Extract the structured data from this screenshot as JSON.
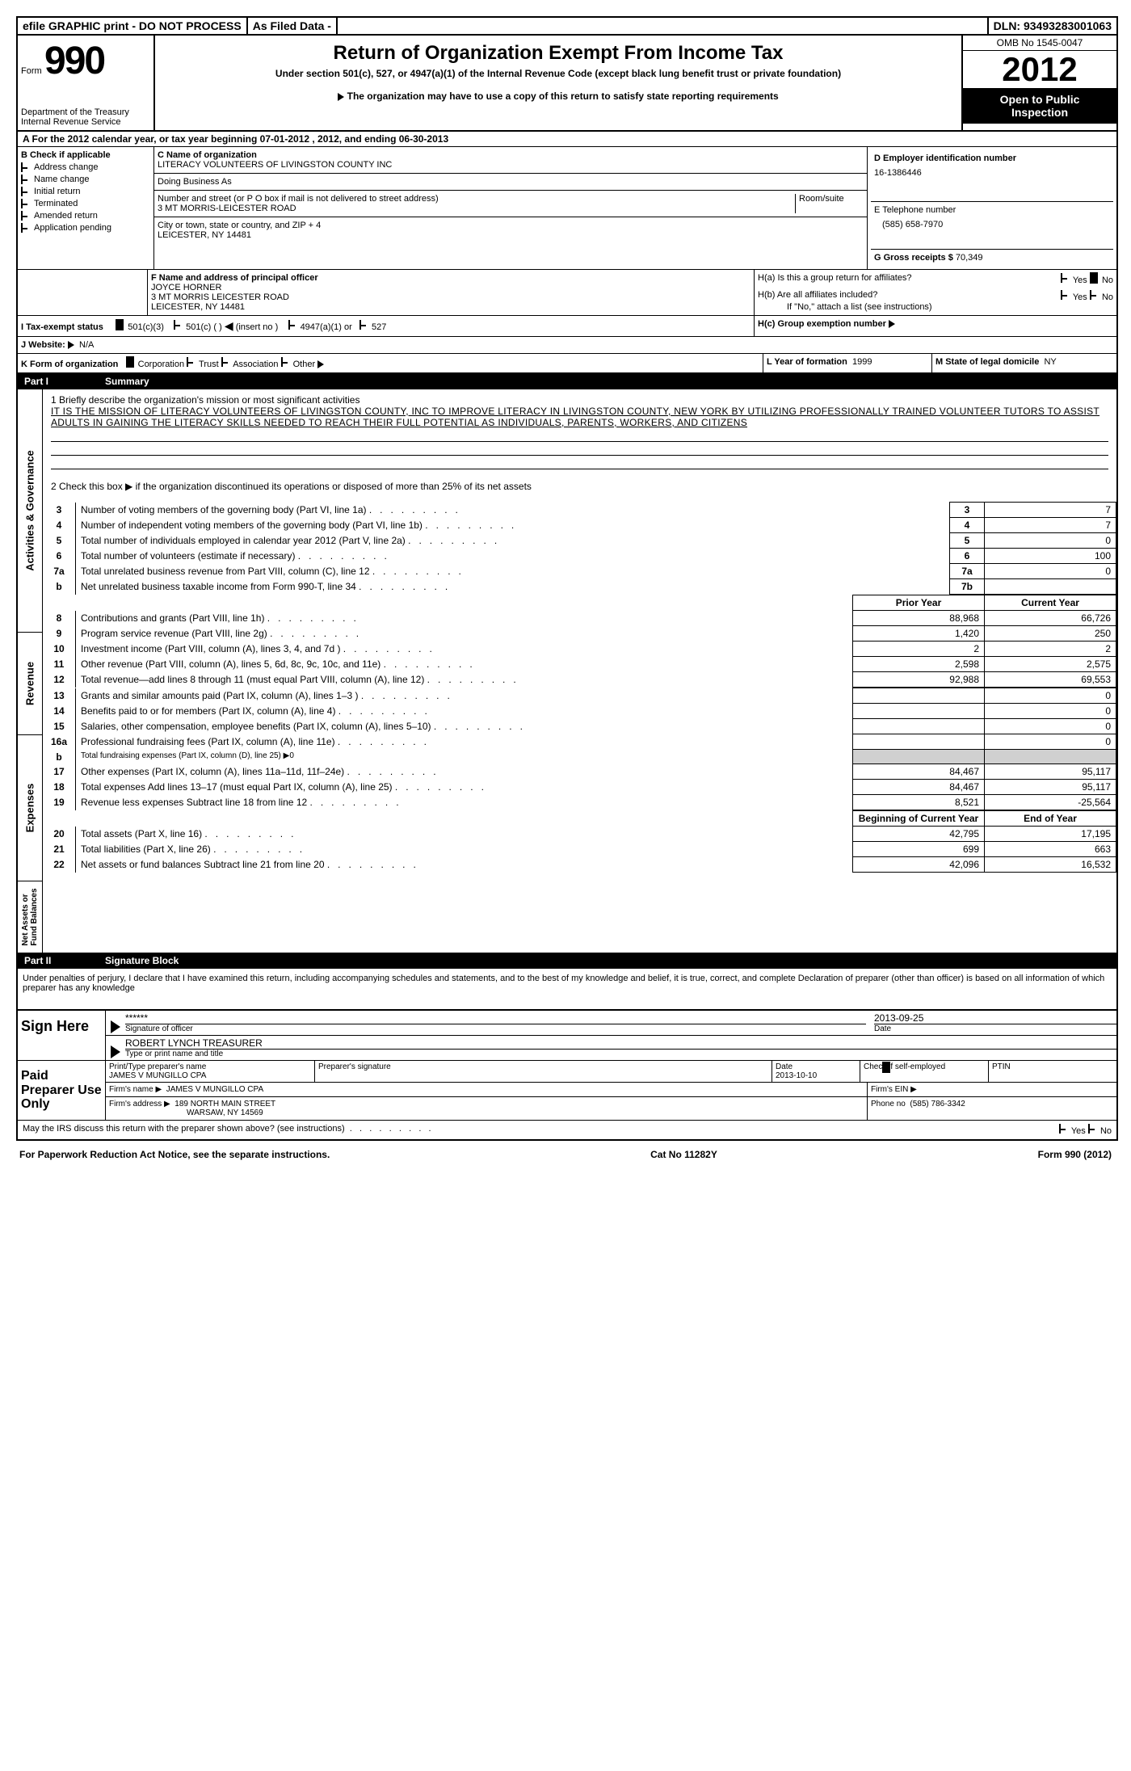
{
  "topbar": {
    "efile": "efile GRAPHIC print - DO NOT PROCESS",
    "asfiled": "As Filed Data -",
    "dln_label": "DLN:",
    "dln": "93493283001063"
  },
  "header": {
    "form_word": "Form",
    "form_num": "990",
    "dept1": "Department of the Treasury",
    "dept2": "Internal Revenue Service",
    "title": "Return of Organization Exempt From Income Tax",
    "subtitle": "Under section 501(c), 527, or 4947(a)(1) of the Internal Revenue Code (except black lung benefit trust or private foundation)",
    "note": "The organization may have to use a copy of this return to satisfy state reporting requirements",
    "omb": "OMB No 1545-0047",
    "year": "2012",
    "open1": "Open to Public",
    "open2": "Inspection"
  },
  "section_a": "A For the 2012 calendar year, or tax year beginning 07-01-2012    , 2012, and ending 06-30-2013",
  "b": {
    "label": "B Check if applicable",
    "items": [
      "Address change",
      "Name change",
      "Initial return",
      "Terminated",
      "Amended return",
      "Application pending"
    ]
  },
  "c": {
    "name_label": "C Name of organization",
    "name": "LITERACY VOLUNTEERS OF LIVINGSTON COUNTY INC",
    "dba_label": "Doing Business As",
    "street_label": "Number and street (or P O  box if mail is not delivered to street address)",
    "room_label": "Room/suite",
    "street": "3 MT MORRIS-LEICESTER ROAD",
    "city_label": "City or town, state or country, and ZIP + 4",
    "city": "LEICESTER, NY  14481"
  },
  "d": {
    "label": "D Employer identification number",
    "value": "16-1386446"
  },
  "e": {
    "label": "E Telephone number",
    "value": "(585) 658-7970"
  },
  "g": {
    "label": "G Gross receipts $",
    "value": "70,349"
  },
  "f": {
    "label": "F  Name and address of principal officer",
    "name": "JOYCE HORNER",
    "addr1": "3 MT MORRIS LEICESTER ROAD",
    "addr2": "LEICESTER, NY  14481"
  },
  "h": {
    "a_label": "H(a)  Is this a group return for affiliates?",
    "b_label": "H(b)  Are all affiliates included?",
    "b_note": "If \"No,\" attach a list  (see instructions)",
    "c_label": "H(c)  Group exemption number",
    "yes": "Yes",
    "no": "No"
  },
  "i": {
    "label": "I  Tax-exempt status",
    "opts": [
      "501(c)(3)",
      "501(c) (   )",
      "(insert no )",
      "4947(a)(1) or",
      "527"
    ]
  },
  "j": {
    "label": "J  Website:",
    "value": "N/A"
  },
  "k": {
    "label": "K Form of organization",
    "opts": [
      "Corporation",
      "Trust",
      "Association",
      "Other"
    ]
  },
  "l": {
    "label": "L Year of formation",
    "value": "1999"
  },
  "m": {
    "label": "M State of legal domicile",
    "value": "NY"
  },
  "part1": {
    "num": "Part I",
    "title": "Summary"
  },
  "mission": {
    "label": "1   Briefly describe the organization's mission or most significant activities",
    "text": "IT IS THE MISSION OF LITERACY VOLUNTEERS OF LIVINGSTON COUNTY, INC  TO IMPROVE LITERACY IN LIVINGSTON COUNTY, NEW YORK BY UTILIZING PROFESSIONALLY TRAINED VOLUNTEER TUTORS TO ASSIST ADULTS IN GAINING THE LITERACY SKILLS NEEDED TO REACH THEIR FULL POTENTIAL AS INDIVIDUALS, PARENTS, WORKERS, AND CITIZENS"
  },
  "line2": "2   Check this box ▶     if the organization discontinued its operations or disposed of more than 25% of its net assets",
  "sideLabels": {
    "gov": "Activities & Governance",
    "rev": "Revenue",
    "exp": "Expenses",
    "net": "Net Assets or\nFund Balances"
  },
  "govRows": [
    {
      "n": "3",
      "label": "Number of voting members of the governing body (Part VI, line 1a)",
      "ref": "3",
      "val": "7"
    },
    {
      "n": "4",
      "label": "Number of independent voting members of the governing body (Part VI, line 1b)",
      "ref": "4",
      "val": "7"
    },
    {
      "n": "5",
      "label": "Total number of individuals employed in calendar year 2012 (Part V, line 2a)",
      "ref": "5",
      "val": "0"
    },
    {
      "n": "6",
      "label": "Total number of volunteers (estimate if necessary)",
      "ref": "6",
      "val": "100"
    },
    {
      "n": "7a",
      "label": "Total unrelated business revenue from Part VIII, column (C), line 12",
      "ref": "7a",
      "val": "0"
    },
    {
      "n": "b",
      "label": "Net unrelated business taxable income from Form 990-T, line 34",
      "ref": "7b",
      "val": ""
    }
  ],
  "colHeaders": {
    "prior": "Prior Year",
    "current": "Current Year",
    "begin": "Beginning of Current Year",
    "end": "End of Year"
  },
  "revRows": [
    {
      "n": "8",
      "label": "Contributions and grants (Part VIII, line 1h)",
      "prior": "88,968",
      "cur": "66,726"
    },
    {
      "n": "9",
      "label": "Program service revenue (Part VIII, line 2g)",
      "prior": "1,420",
      "cur": "250"
    },
    {
      "n": "10",
      "label": "Investment income (Part VIII, column (A), lines 3, 4, and 7d )",
      "prior": "2",
      "cur": "2"
    },
    {
      "n": "11",
      "label": "Other revenue (Part VIII, column (A), lines 5, 6d, 8c, 9c, 10c, and 11e)",
      "prior": "2,598",
      "cur": "2,575"
    },
    {
      "n": "12",
      "label": "Total revenue—add lines 8 through 11 (must equal Part VIII, column (A), line 12)",
      "prior": "92,988",
      "cur": "69,553"
    }
  ],
  "expRows": [
    {
      "n": "13",
      "label": "Grants and similar amounts paid (Part IX, column (A), lines 1–3 )",
      "prior": "",
      "cur": "0"
    },
    {
      "n": "14",
      "label": "Benefits paid to or for members (Part IX, column (A), line 4)",
      "prior": "",
      "cur": "0"
    },
    {
      "n": "15",
      "label": "Salaries, other compensation, employee benefits (Part IX, column (A), lines 5–10)",
      "prior": "",
      "cur": "0"
    },
    {
      "n": "16a",
      "label": "Professional fundraising fees (Part IX, column (A), line 11e)",
      "prior": "",
      "cur": "0"
    },
    {
      "n": "b",
      "label": "Total fundraising expenses (Part IX, column (D), line 25) ▶0",
      "prior": "GRAY",
      "cur": "GRAY"
    },
    {
      "n": "17",
      "label": "Other expenses (Part IX, column (A), lines 11a–11d, 11f–24e)",
      "prior": "84,467",
      "cur": "95,117"
    },
    {
      "n": "18",
      "label": "Total expenses  Add lines 13–17 (must equal Part IX, column (A), line 25)",
      "prior": "84,467",
      "cur": "95,117"
    },
    {
      "n": "19",
      "label": "Revenue less expenses  Subtract line 18 from line 12",
      "prior": "8,521",
      "cur": "-25,564"
    }
  ],
  "netRows": [
    {
      "n": "20",
      "label": "Total assets (Part X, line 16)",
      "prior": "42,795",
      "cur": "17,195"
    },
    {
      "n": "21",
      "label": "Total liabilities (Part X, line 26)",
      "prior": "699",
      "cur": "663"
    },
    {
      "n": "22",
      "label": "Net assets or fund balances  Subtract line 21 from line 20",
      "prior": "42,096",
      "cur": "16,532"
    }
  ],
  "part2": {
    "num": "Part II",
    "title": "Signature Block"
  },
  "perjury": "Under penalties of perjury, I declare that I have examined this return, including accompanying schedules and statements, and to the best of my knowledge and belief, it is true, correct, and complete  Declaration of preparer (other than officer) is based on all information of which preparer has any knowledge",
  "sign": {
    "label": "Sign Here",
    "stars": "******",
    "sig_of_officer": "Signature of officer",
    "date_label": "Date",
    "date": "2013-09-25",
    "name": "ROBERT LYNCH TREASURER",
    "name_label": "Type or print name and title"
  },
  "paid": {
    "label": "Paid Preparer Use Only",
    "pt_name_label": "Print/Type preparer's name",
    "pt_name": "JAMES V MUNGILLO CPA",
    "sig_label": "Preparer's signature",
    "date_label": "Date",
    "date": "2013-10-10",
    "check_label": "Check      if self-employed",
    "ptin_label": "PTIN",
    "firm_name_label": "Firm's name    ▶",
    "firm_name": "JAMES V MUNGILLO CPA",
    "firm_ein_label": "Firm's EIN ▶",
    "firm_addr_label": "Firm's address ▶",
    "firm_addr1": "189 NORTH MAIN STREET",
    "firm_addr2": "WARSAW, NY  14569",
    "phone_label": "Phone no",
    "phone": "(585) 786-3342"
  },
  "discuss": "May the IRS discuss this return with the preparer shown above? (see instructions)",
  "footer": {
    "left": "For Paperwork Reduction Act Notice, see the separate instructions.",
    "center": "Cat No  11282Y",
    "right": "Form 990 (2012)"
  },
  "style": {
    "font_family": "Arial",
    "bg": "#ffffff",
    "fg": "#000000",
    "header_bg_black": "#000000",
    "gray_cell": "#d0d0d0",
    "base_font_pt": 12,
    "title_font_pt": 24,
    "year_font_pt": 42
  }
}
